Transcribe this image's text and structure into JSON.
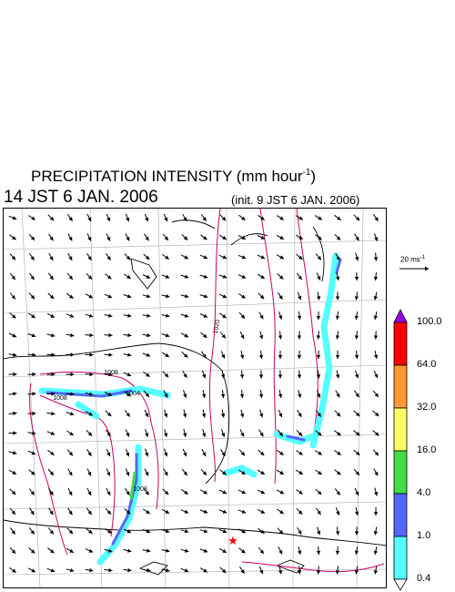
{
  "header": {
    "title_main": "PRECIPITATION INTENSITY (mm hour",
    "title_exp": "-1",
    "title_close": ")",
    "valid_time": "14 JST 6 JAN. 2006",
    "init_time": "(init. 9 JST 6 JAN. 2006)"
  },
  "reference_vector": {
    "label": "20 ms",
    "exp": "-1"
  },
  "colorbar": {
    "labels": [
      "100.0",
      "64.0",
      "32.0",
      "16.0",
      "4.0",
      "1.0",
      "0.4"
    ],
    "colors": [
      "#9a00e8",
      "#ff0000",
      "#ff9933",
      "#ffff66",
      "#44dd44",
      "#5566ff",
      "#55ffff",
      "#ffffff"
    ]
  },
  "map": {
    "isobar_labels": [
      "1020",
      "1008",
      "1008",
      "1004",
      "1008"
    ],
    "isobar_color": "#cc0066",
    "marker_color": "#ff0000"
  }
}
